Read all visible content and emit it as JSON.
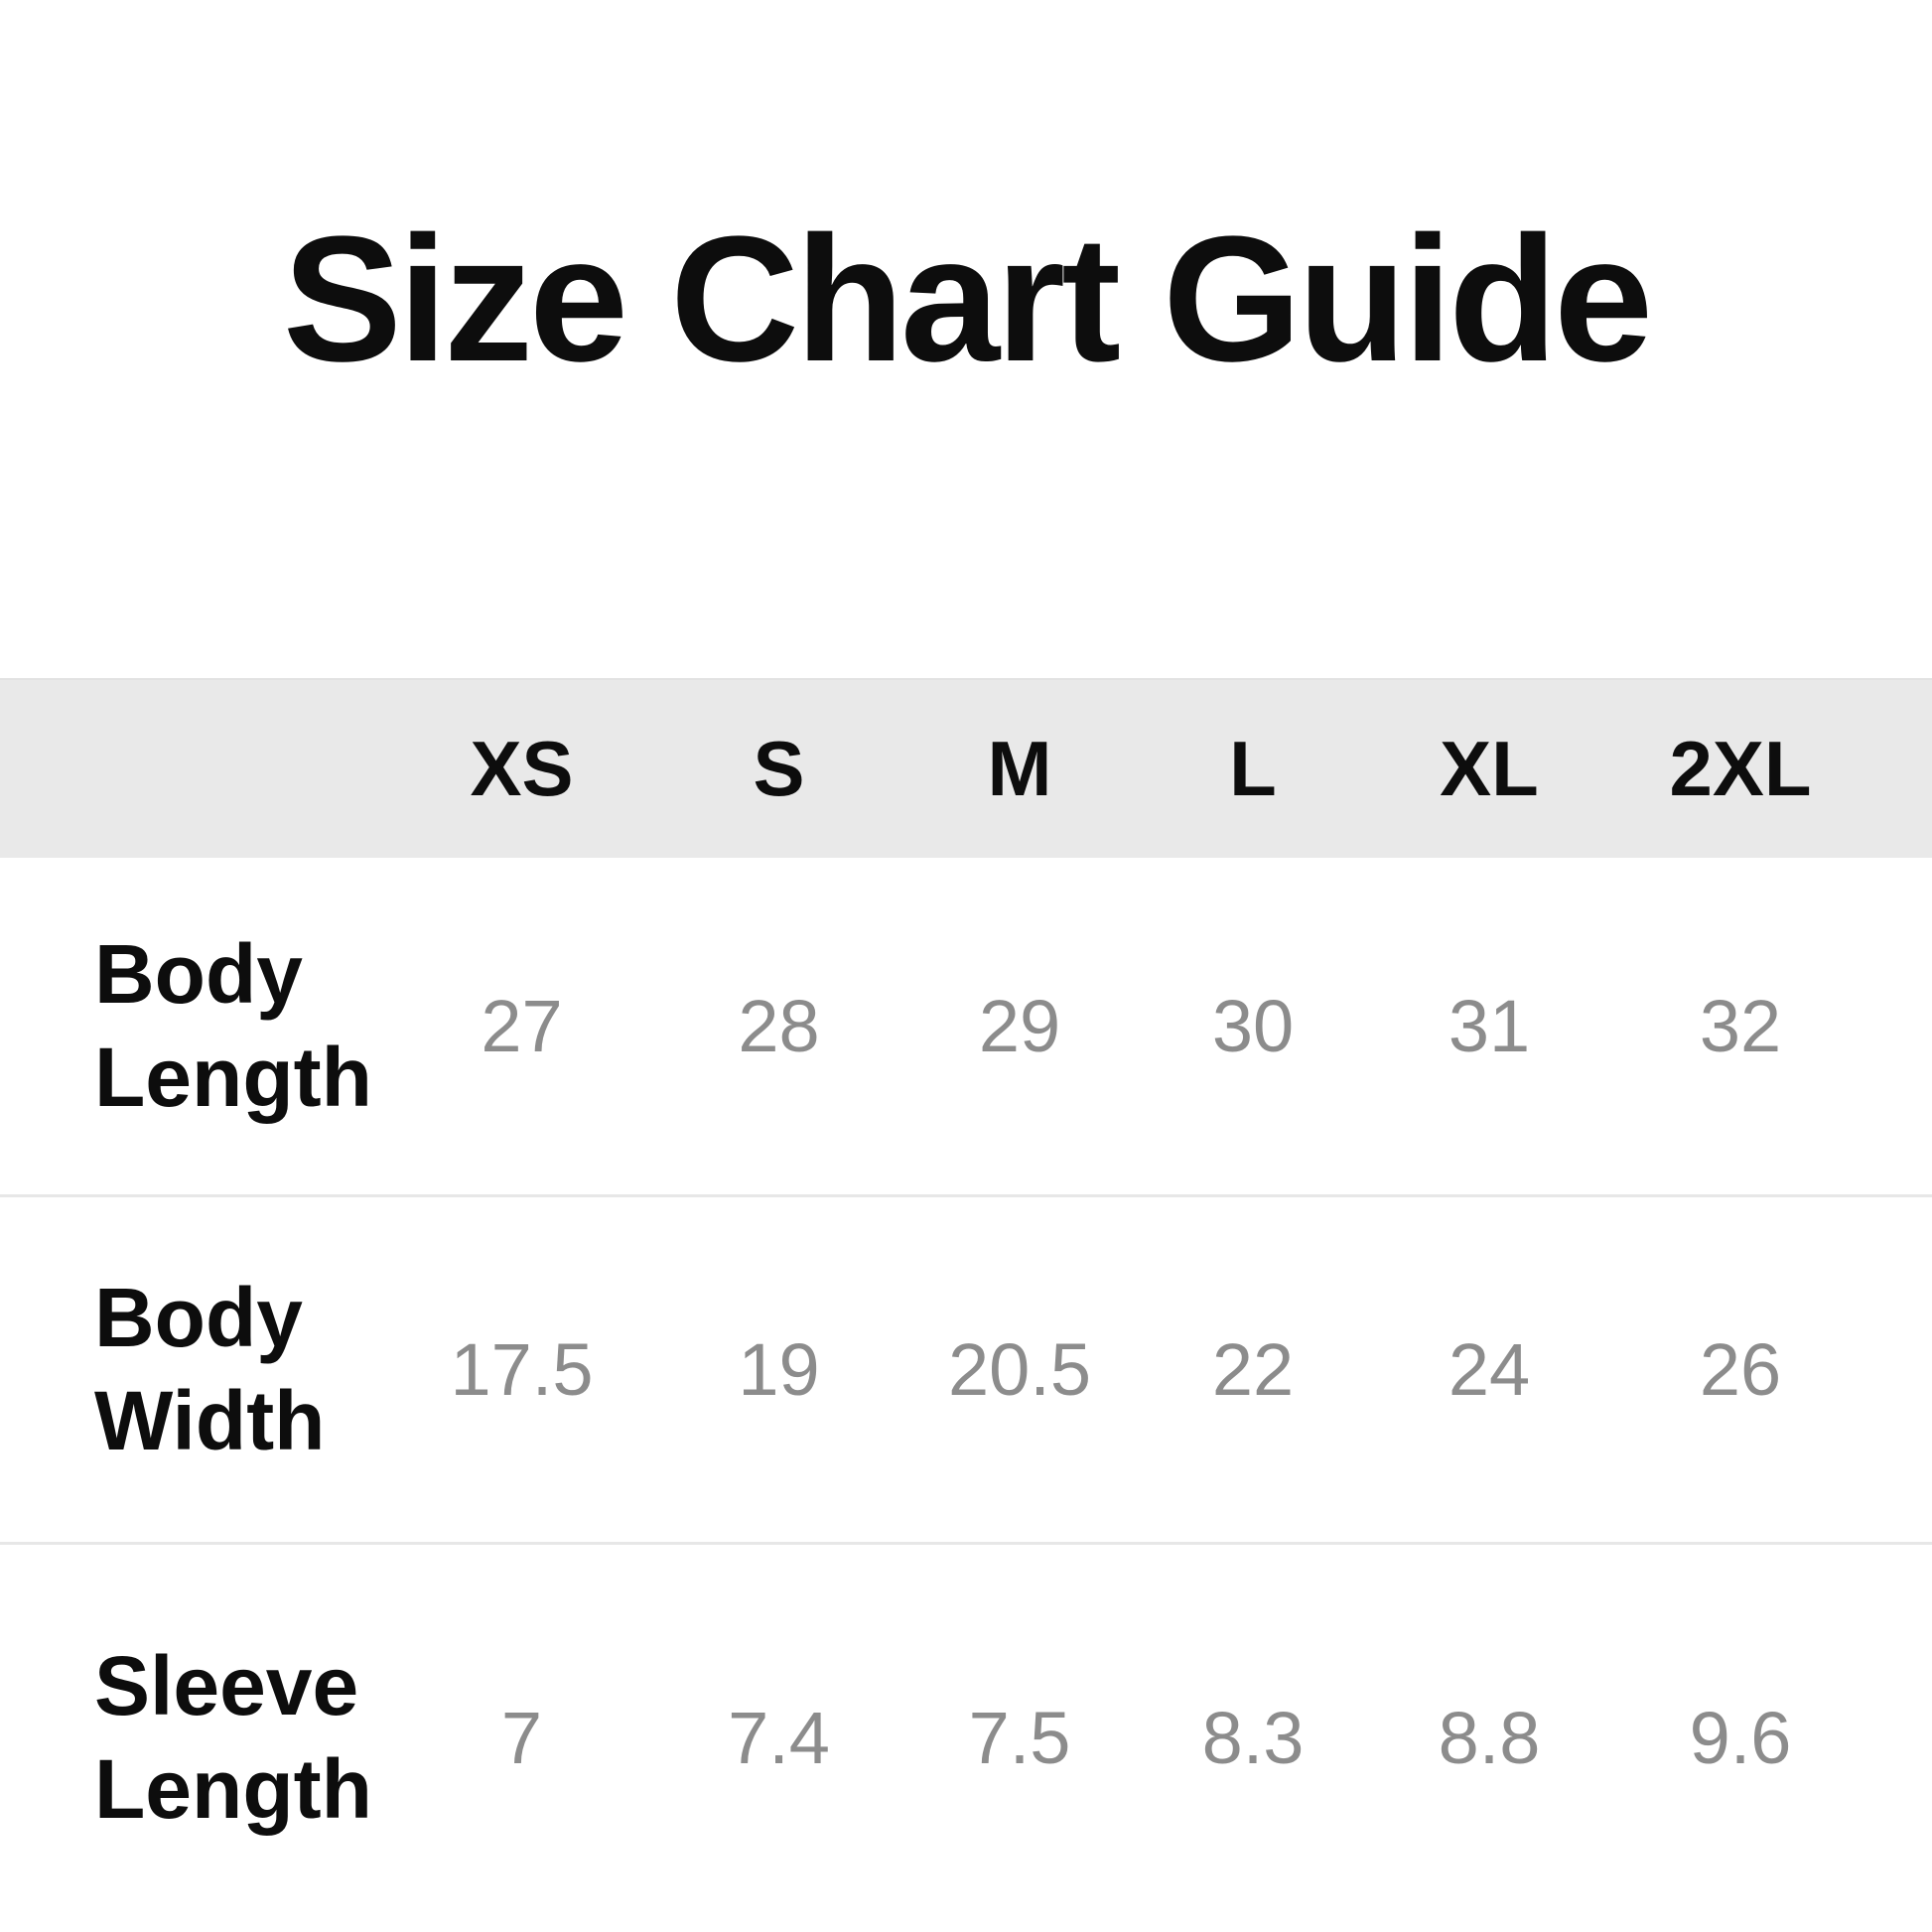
{
  "page": {
    "title": "Size Chart Guide"
  },
  "chart_data": {
    "type": "table",
    "title": "Size Chart Guide",
    "columns": [
      "XS",
      "S",
      "M",
      "L",
      "XL",
      "2XL"
    ],
    "rows": [
      {
        "label": "Body Length",
        "values": [
          27,
          28,
          29,
          30,
          31,
          32
        ]
      },
      {
        "label": "Body Width",
        "values": [
          17.5,
          19,
          20.5,
          22,
          24,
          26
        ]
      },
      {
        "label": "Sleeve Length",
        "values": [
          7,
          7.4,
          7.5,
          8.3,
          8.8,
          9.6
        ]
      }
    ]
  },
  "colors": {
    "header_bg": "#e9e9e9",
    "label_text": "#0d0d0d",
    "value_text": "#8c8c8c",
    "divider": "#e7e7e7",
    "background": "#ffffff"
  }
}
